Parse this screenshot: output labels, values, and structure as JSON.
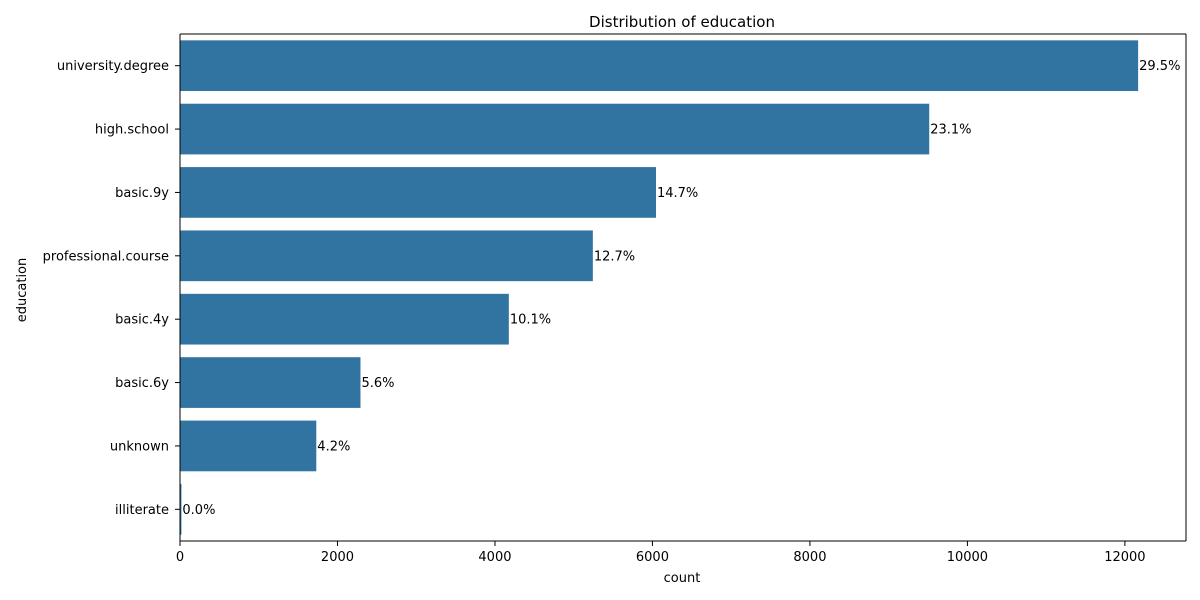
{
  "chart_data": {
    "type": "bar",
    "orientation": "horizontal",
    "title": "Distribution of education",
    "xlabel": "count",
    "ylabel": "education",
    "categories": [
      "university.degree",
      "high.school",
      "basic.9y",
      "professional.course",
      "basic.4y",
      "basic.6y",
      "unknown",
      "illiterate"
    ],
    "values": [
      12168,
      9515,
      6045,
      5243,
      4176,
      2292,
      1731,
      18
    ],
    "data_labels": [
      "29.5%",
      "23.1%",
      "14.7%",
      "12.7%",
      "10.1%",
      "5.6%",
      "4.2%",
      "0.0%"
    ],
    "xlim": [
      0,
      12776
    ],
    "xticks": [
      0,
      2000,
      4000,
      6000,
      8000,
      10000,
      12000
    ],
    "xtick_labels": [
      "0",
      "2000",
      "4000",
      "6000",
      "8000",
      "10000",
      "12000"
    ],
    "grid": false,
    "bar_color": "#3274a1"
  }
}
